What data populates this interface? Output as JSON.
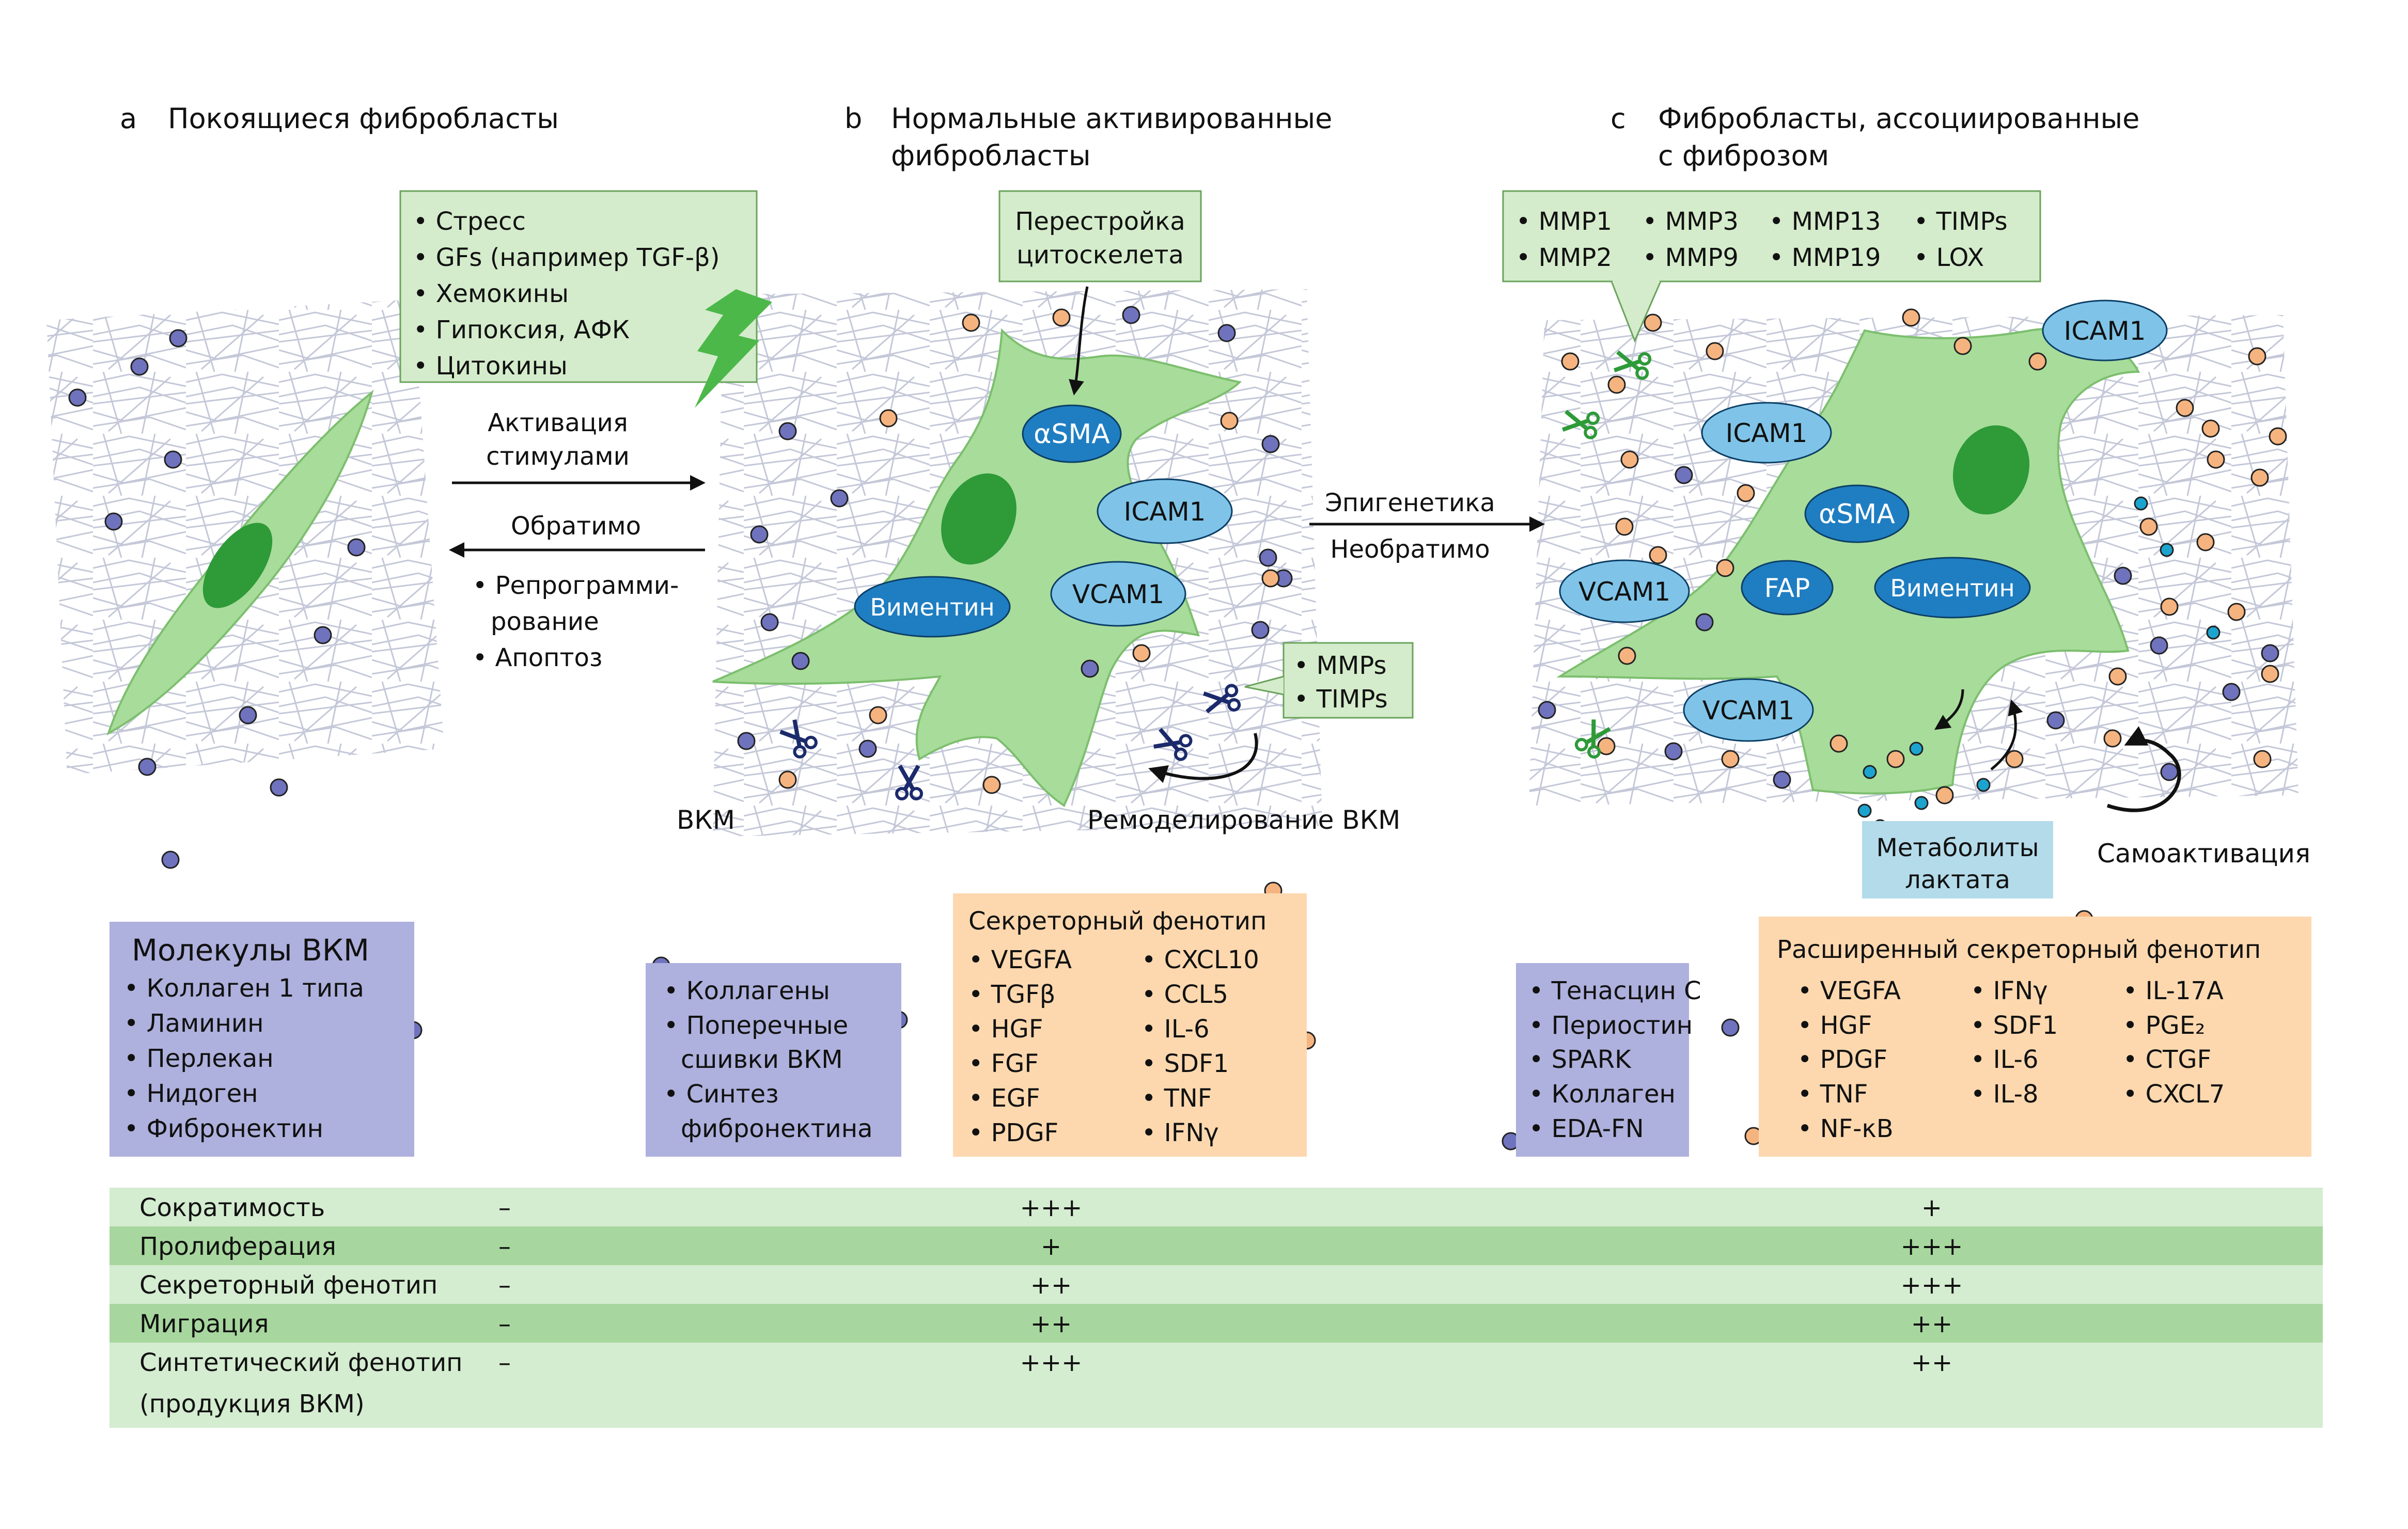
{
  "panels": {
    "a": {
      "letter": "a",
      "title": "Покоящиеся фибробласты"
    },
    "b": {
      "letter": "b",
      "title_lines": [
        "Нормальные активированные",
        "фибробласты"
      ]
    },
    "c": {
      "letter": "c",
      "title_lines": [
        "Фибробласты, ассоциированные",
        "с фиброзом"
      ]
    }
  },
  "stimuli_box": [
    "• Стресс",
    "• GFs (например TGF-β)",
    "• Хемокины",
    "• Гипоксия, АФК",
    "• Цитокины"
  ],
  "arrows_ab": {
    "forward_lines": [
      "Активация",
      "стимулами"
    ],
    "backward": "Обратимо",
    "backward_list": [
      "• Репрограмми-",
      "рование",
      "• Апоптоз"
    ]
  },
  "arrows_bc": {
    "top": "Эпигенетика",
    "bottom": "Необратимо"
  },
  "cytoskeleton_box": [
    "Перестройка",
    "цитоскелета"
  ],
  "cell_b_markers": {
    "asma": "αSMA",
    "icam1": "ICAM1",
    "vimentin": "Виментин",
    "vcam1": "VCAM1"
  },
  "mmp_box_b": [
    "• MMPs",
    "• TIMPs"
  ],
  "ecm_label": "ВКМ",
  "remodeling_label": "Ремоделирование ВКМ",
  "mmp_box_c": {
    "row1": [
      "• MMP1",
      "• MMP3",
      "• MMP13",
      "• TIMPs"
    ],
    "row2": [
      "• MMP2",
      "• MMP9",
      "• MMP19",
      "• LOX"
    ]
  },
  "cell_c_markers": {
    "icam1_a": "ICAM1",
    "icam1_b": "ICAM1",
    "asma": "αSMA",
    "vcam1_a": "VCAM1",
    "fap": "FAP",
    "vimentin": "Виментин",
    "vcam1_b": "VCAM1"
  },
  "lactate_box": [
    "Метаболиты",
    "лактата"
  ],
  "self_activation_label": "Самоактивация",
  "ecm_molecules": {
    "title": "Молекулы ВКМ",
    "items": [
      "• Коллаген 1 типа",
      "• Ламинин",
      "• Перлекан",
      "• Нидоген",
      "• Фибронектин"
    ]
  },
  "ecm_b": [
    "• Коллагены",
    "• Поперечные",
    "сшивки ВКМ",
    "• Синтез",
    "фибронектина"
  ],
  "secretory_b": {
    "title": "Секреторный фенотип",
    "col1": [
      "• VEGFA",
      "• TGFβ",
      "• HGF",
      "• FGF",
      "• EGF",
      "• PDGF"
    ],
    "col2": [
      "• CXCL10",
      "• CCL5",
      "• IL-6",
      "• SDF1",
      "• TNF",
      "• IFNγ"
    ]
  },
  "ecm_c": [
    "• Тенасцин С",
    "• Периостин",
    "• SPARK",
    "• Коллаген",
    "• EDA-FN"
  ],
  "secretory_c": {
    "title": "Расширенный секреторный фенотип",
    "col1": [
      "• VEGFA",
      "• HGF",
      "• PDGF",
      "• TNF",
      "• NF-κB"
    ],
    "col2": [
      "• IFNγ",
      "• SDF1",
      "• IL-6",
      "• IL-8"
    ],
    "col3": [
      "• IL-17A",
      "• PGE₂",
      "• CTGF",
      "• CXCL7"
    ]
  },
  "table": {
    "rows": [
      {
        "label": "Сократимость",
        "a": "–",
        "b": "+++",
        "c": "+"
      },
      {
        "label": "Пролиферация",
        "a": "–",
        "b": "+",
        "c": "+++"
      },
      {
        "label": "Секреторный фенотип",
        "a": "–",
        "b": "++",
        "c": "+++"
      },
      {
        "label": "Миграция",
        "a": "–",
        "b": "++",
        "c": "++"
      },
      {
        "label": "Синтетический фенотип",
        "label2": "(продукция ВКМ)",
        "a": "–",
        "b": "+++",
        "c": "++"
      }
    ]
  },
  "colors": {
    "cell": "#a8dc9a",
    "cell_stroke": "#7cbf6e",
    "nucleus": "#2e9a38",
    "box_green": "#d4eccb",
    "box_purple": "#aeb0dd",
    "box_orange": "#fdd8ae",
    "box_blue": "#b4dbea",
    "marker_dark": "#1f7ec2",
    "marker_light": "#7fc4e8",
    "dot_blue": "#6f73bd",
    "dot_orange": "#f5b47f",
    "dot_cyan": "#1ca4cf",
    "row_light": "#d4ecd0",
    "row_dark": "#a7d79e"
  }
}
